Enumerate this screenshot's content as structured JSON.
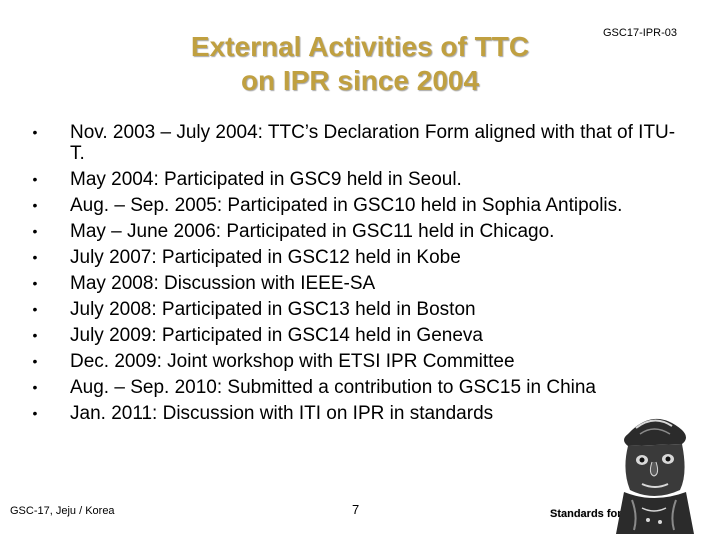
{
  "header": {
    "title_line1": "External Activities of TTC",
    "title_line2": "on IPR since 2004",
    "doc_id": "GSC17-IPR-03"
  },
  "bullets": [
    "Nov. 2003 – July 2004:  TTC’s Declaration Form aligned with that of ITU-T.",
    "May 2004:  Participated in GSC9 held in Seoul.",
    "Aug. – Sep. 2005: Participated in GSC10 held in Sophia Antipolis.",
    "May – June 2006: Participated in GSC11 held in Chicago.",
    "July 2007: Participated in GSC12 held in Kobe",
    "May 2008: Discussion with IEEE-SA",
    "July 2008: Participated in GSC13 held in Boston",
    "July 2009: Participated in GSC14 held in Geneva",
    "Dec. 2009: Joint workshop with ETSI IPR Committee",
    "Aug. – Sep. 2010: Submitted a contribution to GSC15 in China",
    "Jan. 2011: Discussion with ITI on IPR in standards"
  ],
  "bullet_glyph": "•",
  "footer": {
    "left": "GSC-17, Jeju / Korea",
    "page_number": "7",
    "right": "Standards for Shared ICT"
  },
  "colors": {
    "title": "#c0a040",
    "text": "#000000",
    "statue_stone": "#2b2b2b",
    "statue_highlight": "#d8d8d8"
  },
  "icons": {
    "decoration": "stone-statue-icon"
  }
}
